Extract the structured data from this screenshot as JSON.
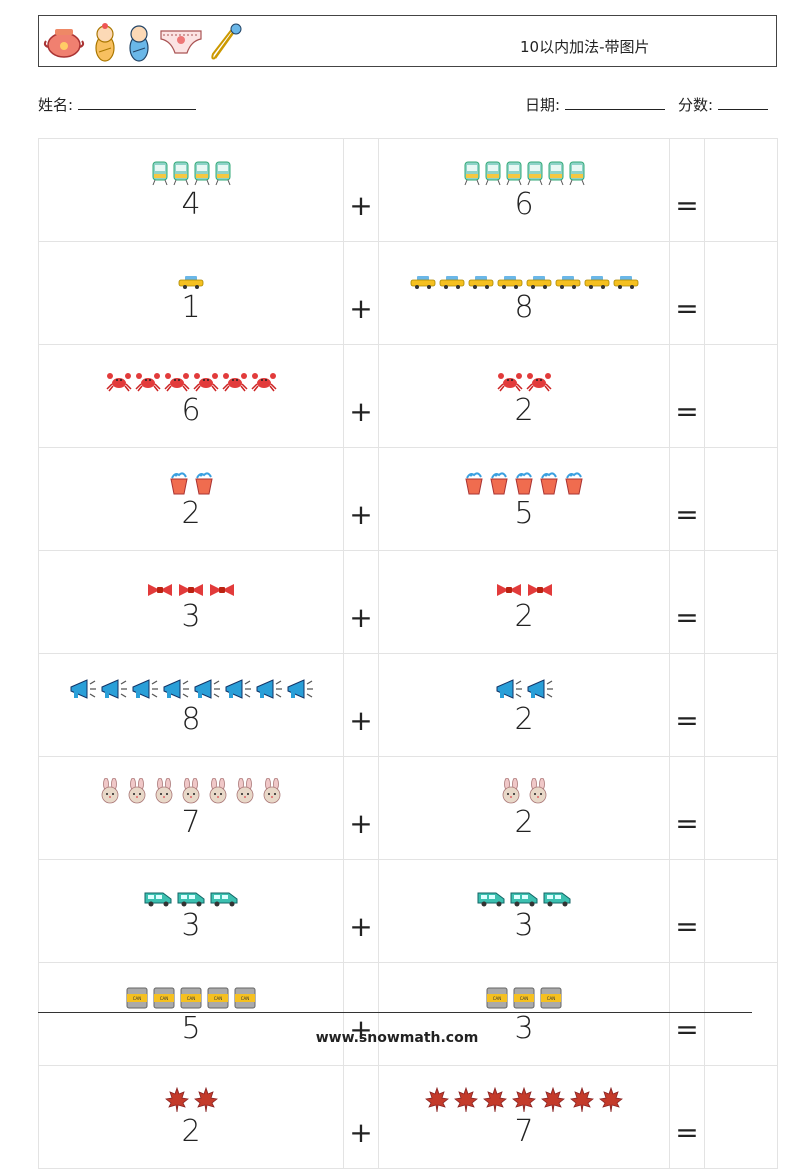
{
  "header": {
    "title": "10以内加法-带图片",
    "icons": [
      "baby-bowl-icon",
      "baby-girl-icon",
      "baby-boy-icon",
      "diaper-icon",
      "safety-pin-icon"
    ]
  },
  "meta": {
    "name_label": "姓名:",
    "date_label": "日期:",
    "score_label": "分数:"
  },
  "operators": {
    "plus": "+",
    "equals": "="
  },
  "problems": [
    {
      "a": "4",
      "a_icon": "tram",
      "b": "6",
      "b_icon": "tram"
    },
    {
      "a": "1",
      "a_icon": "taxi",
      "b": "8",
      "b_icon": "taxi"
    },
    {
      "a": "6",
      "a_icon": "crab",
      "b": "2",
      "b_icon": "crab"
    },
    {
      "a": "2",
      "a_icon": "bucket",
      "b": "5",
      "b_icon": "bucket"
    },
    {
      "a": "3",
      "a_icon": "bowtie",
      "b": "2",
      "b_icon": "bowtie"
    },
    {
      "a": "8",
      "a_icon": "megaphone",
      "b": "2",
      "b_icon": "megaphone"
    },
    {
      "a": "7",
      "a_icon": "bunny",
      "b": "2",
      "b_icon": "bunny"
    },
    {
      "a": "3",
      "a_icon": "van",
      "b": "3",
      "b_icon": "van"
    },
    {
      "a": "5",
      "a_icon": "can",
      "b": "3",
      "b_icon": "can"
    },
    {
      "a": "2",
      "a_icon": "maple-leaf",
      "b": "7",
      "b_icon": "maple-leaf"
    }
  ],
  "footer": {
    "url": "www.snowmath.com"
  }
}
